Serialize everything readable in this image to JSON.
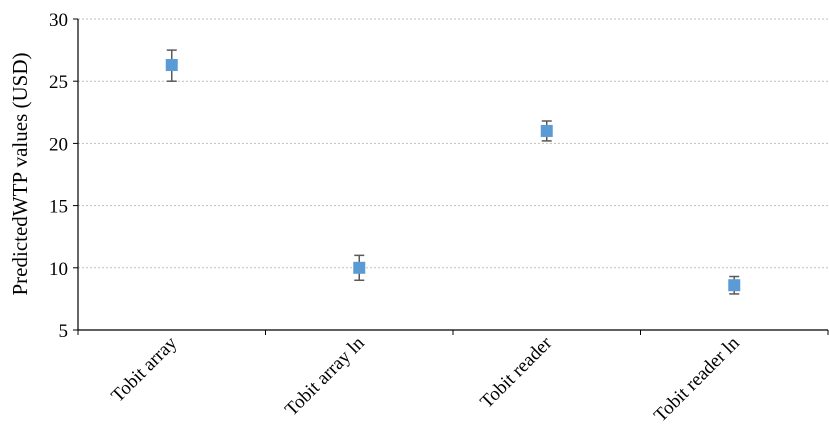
{
  "chart_data": {
    "type": "scatter",
    "title": "",
    "xlabel": "",
    "ylabel": "PredictedWTP values (USD)",
    "categories": [
      "Tobit array",
      "Tobit array ln",
      "Tobit reader",
      "Tobit reader ln"
    ],
    "values": [
      26.3,
      10.0,
      21.0,
      8.6
    ],
    "error_low": [
      25.0,
      9.0,
      20.2,
      7.9
    ],
    "error_high": [
      27.5,
      11.0,
      21.8,
      9.3
    ],
    "ylim": [
      5,
      30
    ],
    "yticks": [
      "5",
      "10",
      "15",
      "20",
      "25",
      "30"
    ],
    "grid": true,
    "marker_color": "#5B9BD5",
    "errorbar_color": "#595959",
    "grid_color": "#BFBFBF"
  }
}
